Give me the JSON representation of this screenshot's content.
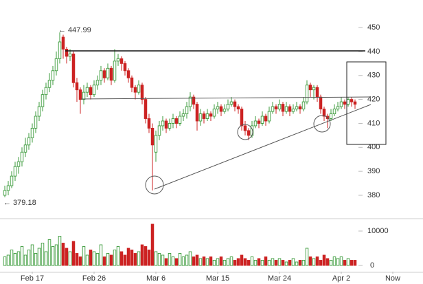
{
  "chart_data": {
    "type": "candlestick",
    "up_color": "#3a9a3a",
    "down_color": "#cc2222",
    "xlim": [
      -1.4,
      121.8
    ],
    "xticks": [
      {
        "value": 8,
        "label": "Feb 17"
      },
      {
        "value": 26,
        "label": "Feb 26"
      },
      {
        "value": 44,
        "label": "Mar 6"
      },
      {
        "value": 62,
        "label": "Mar 15"
      },
      {
        "value": 80,
        "label": "Mar 24"
      },
      {
        "value": 98,
        "label": "Apr 2"
      },
      {
        "value": 113,
        "label": "Now"
      }
    ],
    "ylim": [
      371.1,
      461.5
    ],
    "yticks": [
      380,
      390,
      400,
      410,
      420,
      430,
      440,
      450
    ],
    "volume_ylim": [
      -1800,
      13600
    ],
    "volume_yticks": [
      0,
      10000
    ],
    "annotations": [
      {
        "text": "← 447.99",
        "index": 16,
        "value": 447.99
      },
      {
        "text": "← 379.18",
        "index": 0,
        "value": 379.18
      }
    ],
    "ohlc": [
      [
        380,
        384,
        379.18,
        382
      ],
      [
        382,
        386,
        380,
        384
      ],
      [
        384,
        390,
        383,
        388
      ],
      [
        388,
        394,
        386,
        392
      ],
      [
        392,
        396,
        389,
        394
      ],
      [
        394,
        400,
        392,
        398
      ],
      [
        398,
        404,
        396,
        401
      ],
      [
        401,
        406,
        399,
        404
      ],
      [
        404,
        410,
        402,
        408
      ],
      [
        408,
        415,
        406,
        413
      ],
      [
        413,
        419,
        411,
        417
      ],
      [
        417,
        424,
        415,
        422
      ],
      [
        422,
        427,
        420,
        425
      ],
      [
        425,
        431,
        423,
        428
      ],
      [
        428,
        434,
        426,
        432
      ],
      [
        432,
        440,
        430,
        437
      ],
      [
        437,
        447.99,
        435,
        444
      ],
      [
        446,
        447,
        437,
        441
      ],
      [
        441,
        442,
        435,
        438
      ],
      [
        438,
        441,
        436,
        439
      ],
      [
        439,
        440,
        425,
        427
      ],
      [
        427,
        429,
        419,
        424
      ],
      [
        424,
        425,
        414,
        420
      ],
      [
        420,
        426,
        418,
        423
      ],
      [
        423,
        427,
        421,
        425
      ],
      [
        425,
        426,
        420,
        422
      ],
      [
        422,
        428,
        421,
        426
      ],
      [
        426,
        430,
        424,
        428
      ],
      [
        428,
        434,
        426,
        432
      ],
      [
        432,
        433,
        427,
        429
      ],
      [
        429,
        435,
        428,
        433
      ],
      [
        433,
        434,
        426,
        428
      ],
      [
        428,
        441,
        427,
        436
      ],
      [
        436,
        439,
        434,
        437
      ],
      [
        437,
        438,
        432,
        435
      ],
      [
        435,
        436,
        430,
        432
      ],
      [
        432,
        433,
        427,
        429
      ],
      [
        429,
        430,
        423,
        425
      ],
      [
        425,
        426,
        420,
        423
      ],
      [
        423,
        428,
        422,
        426
      ],
      [
        426,
        427,
        418,
        420
      ],
      [
        420,
        421,
        410,
        412
      ],
      [
        412,
        414,
        406,
        408
      ],
      [
        408,
        410,
        382,
        401
      ],
      [
        398,
        407,
        394,
        405
      ],
      [
        405,
        411,
        403,
        409
      ],
      [
        409,
        413,
        407,
        411
      ],
      [
        411,
        412,
        406,
        408
      ],
      [
        408,
        412,
        407,
        410
      ],
      [
        410,
        414,
        408,
        412
      ],
      [
        412,
        413,
        408,
        410
      ],
      [
        410,
        415,
        409,
        413
      ],
      [
        413,
        416,
        411,
        414
      ],
      [
        414,
        419,
        412,
        417
      ],
      [
        417,
        423,
        415,
        421
      ],
      [
        421,
        422,
        416,
        418
      ],
      [
        418,
        419,
        407,
        411
      ],
      [
        411,
        416,
        409,
        414
      ],
      [
        414,
        415,
        410,
        412
      ],
      [
        412,
        416,
        411,
        414
      ],
      [
        414,
        415,
        411,
        413
      ],
      [
        413,
        418,
        412,
        416
      ],
      [
        416,
        419,
        414,
        417
      ],
      [
        417,
        418,
        413,
        415
      ],
      [
        415,
        418,
        414,
        416
      ],
      [
        416,
        420,
        415,
        418
      ],
      [
        418,
        421,
        417,
        419
      ],
      [
        419,
        420,
        415,
        417
      ],
      [
        417,
        418,
        414,
        416
      ],
      [
        416,
        417,
        407,
        409
      ],
      [
        409,
        411,
        405,
        407
      ],
      [
        407,
        408,
        403,
        405
      ],
      [
        405,
        411,
        404,
        409
      ],
      [
        409,
        413,
        408,
        411
      ],
      [
        411,
        412,
        408,
        410
      ],
      [
        410,
        415,
        409,
        413
      ],
      [
        413,
        414,
        409,
        411
      ],
      [
        411,
        417,
        410,
        415
      ],
      [
        415,
        419,
        414,
        417
      ],
      [
        417,
        418,
        414,
        416
      ],
      [
        416,
        420,
        415,
        418
      ],
      [
        418,
        419,
        413,
        415
      ],
      [
        415,
        419,
        414,
        417
      ],
      [
        417,
        418,
        413,
        415
      ],
      [
        415,
        418,
        414,
        416
      ],
      [
        416,
        419,
        415,
        417
      ],
      [
        417,
        418,
        414,
        416
      ],
      [
        416,
        421,
        415,
        419
      ],
      [
        419,
        428,
        418,
        426
      ],
      [
        426,
        427,
        421,
        424
      ],
      [
        424,
        426,
        420,
        425
      ],
      [
        425,
        426,
        419,
        421
      ],
      [
        421,
        422,
        414,
        416
      ],
      [
        416,
        417,
        411,
        413
      ],
      [
        413,
        414,
        408,
        412
      ],
      [
        412,
        416,
        411,
        414
      ],
      [
        414,
        418,
        413,
        416
      ],
      [
        416,
        419,
        415,
        417
      ],
      [
        417,
        421,
        416,
        419
      ],
      [
        419,
        420,
        416,
        418
      ],
      [
        418,
        421,
        417,
        420
      ],
      [
        420,
        421,
        417,
        419
      ],
      [
        419,
        420,
        416,
        418
      ]
    ],
    "volume": [
      2500,
      3000,
      4500,
      3500,
      4000,
      5500,
      3000,
      4500,
      6000,
      3500,
      5000,
      6500,
      4000,
      7500,
      5500,
      6000,
      8500,
      6500,
      5000,
      4000,
      7000,
      3500,
      2500,
      5500,
      3000,
      4500,
      4000,
      3500,
      6000,
      2500,
      3500,
      3000,
      4500,
      5500,
      4000,
      3000,
      5000,
      4500,
      3500,
      4000,
      6000,
      5500,
      4500,
      12000,
      4000,
      3500,
      3000,
      2000,
      3500,
      2500,
      2000,
      3500,
      2500,
      3000,
      4000,
      2500,
      3000,
      2000,
      2500,
      2000,
      2500,
      1500,
      2000,
      2500,
      1500,
      2000,
      2500,
      1500,
      2000,
      3000,
      2000,
      1500,
      2500,
      1500,
      2000,
      1500,
      2500,
      1500,
      2000,
      1500,
      2000,
      1500,
      1000,
      1500,
      2000,
      1000,
      1500,
      1500,
      5000,
      2500,
      2000,
      2500,
      1500,
      3000,
      2000,
      1500,
      2500,
      2000,
      2500,
      1500,
      2000,
      1500,
      1500
    ]
  }
}
